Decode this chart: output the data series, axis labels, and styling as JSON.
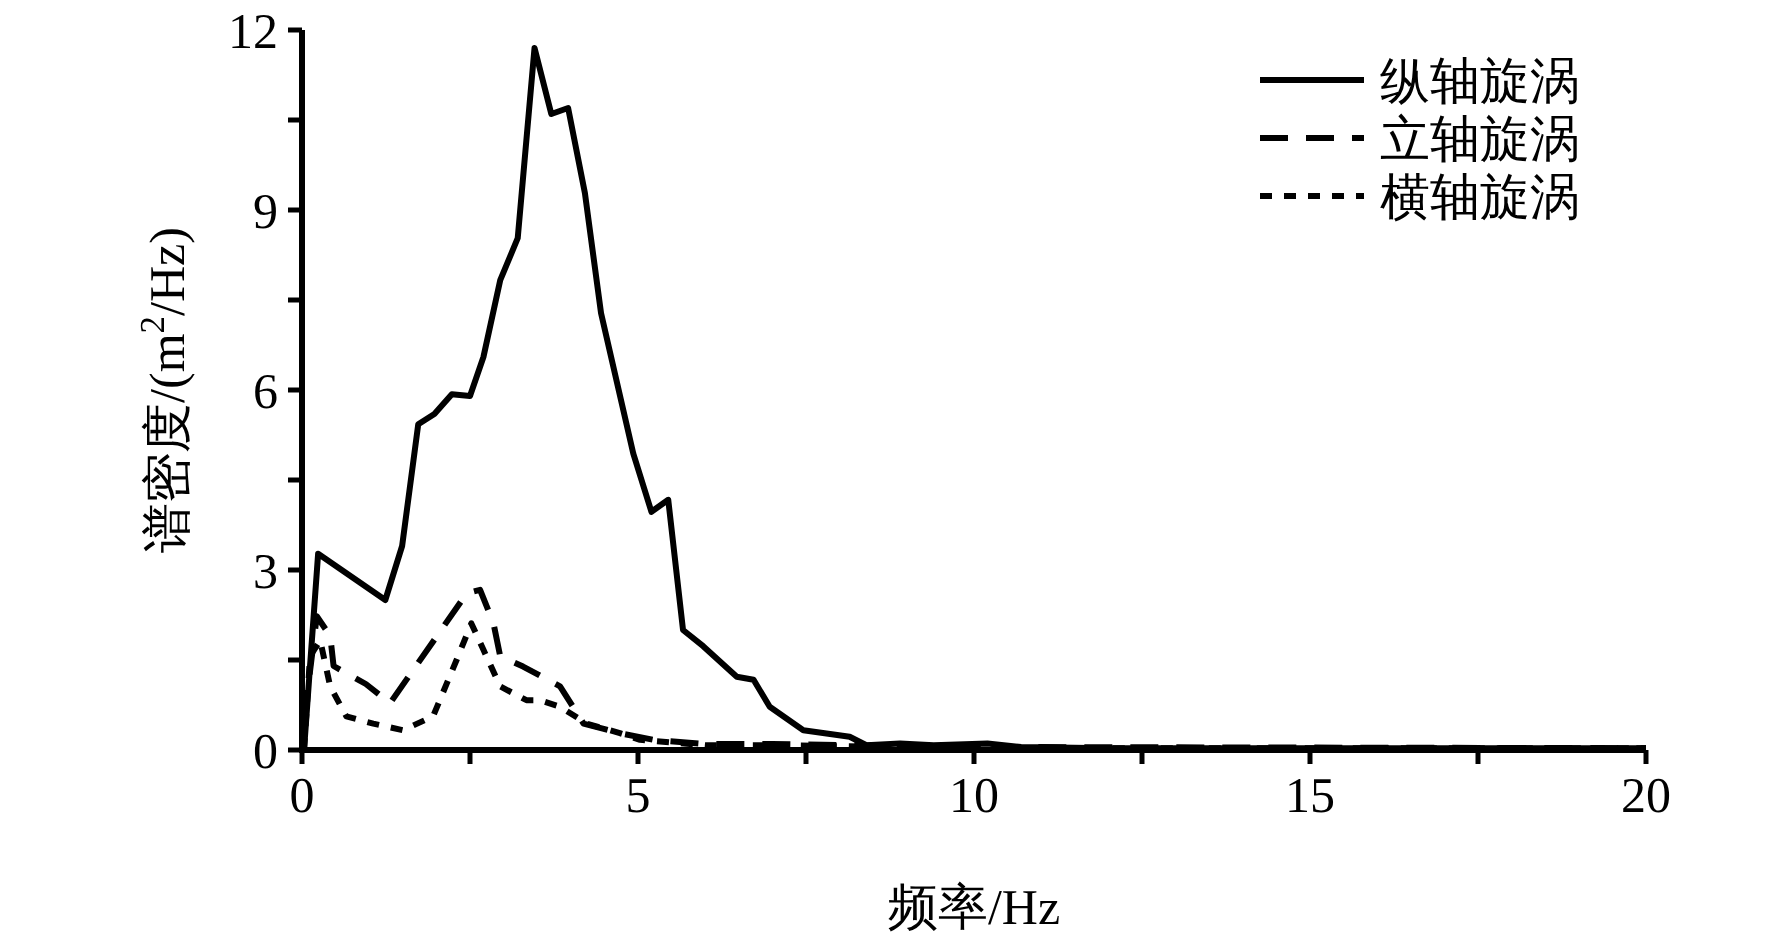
{
  "chart_data": {
    "type": "line",
    "xlabel": "频率/Hz",
    "ylabel": "谱密度/(m$^{2}$/Hz)",
    "xlim": [
      0,
      20
    ],
    "ylim": [
      0,
      12
    ],
    "xticks": [
      0,
      {
        "value": 2.5,
        "label": null
      },
      5,
      {
        "value": 7.5,
        "label": null
      },
      10,
      {
        "value": 12.5,
        "label": null
      },
      15,
      {
        "value": 17.5,
        "label": null
      },
      20
    ],
    "yticks": [
      0,
      {
        "value": 1.5,
        "label": null
      },
      3,
      {
        "value": 4.5,
        "label": null
      },
      6,
      {
        "value": 7.5,
        "label": null
      },
      9,
      {
        "value": 10.5,
        "label": null
      },
      12
    ],
    "grid": false,
    "legend": "top right",
    "series": [
      {
        "name": "纵轴旋涡",
        "color": "#000000",
        "line_style": "solid",
        "x": [
          0.03,
          0.24,
          1.24,
          1.49,
          1.73,
          1.97,
          2.23,
          2.5,
          2.7,
          2.95,
          3.21,
          3.46,
          3.71,
          3.96,
          4.21,
          4.45,
          4.93,
          5.2,
          5.45,
          5.67,
          5.97,
          6.47,
          6.72,
          6.96,
          7.46,
          8.15,
          8.4,
          8.9,
          9.4,
          10.2,
          10.7,
          12,
          15,
          20
        ],
        "values": [
          0,
          3.27,
          2.5,
          3.4,
          5.43,
          5.6,
          5.93,
          5.9,
          6.55,
          7.83,
          8.53,
          11.7,
          10.6,
          10.7,
          9.28,
          7.28,
          4.94,
          3.97,
          4.17,
          2.0,
          1.73,
          1.22,
          1.17,
          0.72,
          0.33,
          0.22,
          0.08,
          0.11,
          0.08,
          0.11,
          0.05,
          0.03,
          0.03,
          0.03
        ]
      },
      {
        "name": "立轴旋涡",
        "color": "#000000",
        "line_style": "dashed",
        "x": [
          0.03,
          0.22,
          0.42,
          0.47,
          0.95,
          1.31,
          2.45,
          2.65,
          2.85,
          2.95,
          3.29,
          3.84,
          4.19,
          4.73,
          5.23,
          6,
          7,
          10,
          20
        ],
        "values": [
          0.5,
          2.23,
          1.9,
          1.4,
          1.1,
          0.78,
          2.61,
          2.67,
          2.11,
          1.56,
          1.39,
          1.06,
          0.44,
          0.28,
          0.17,
          0.1,
          0.1,
          0.05,
          0.03
        ]
      },
      {
        "name": "横轴旋涡",
        "color": "#000000",
        "line_style": "dotted",
        "x": [
          0.03,
          0.12,
          0.27,
          0.42,
          0.66,
          1.06,
          1.5,
          1.95,
          2.3,
          2.52,
          2.7,
          2.95,
          3.34,
          3.54,
          3.84,
          4.24,
          4.73,
          5.03,
          6,
          7,
          10,
          20
        ],
        "values": [
          0,
          1.56,
          1.83,
          1.06,
          0.56,
          0.44,
          0.33,
          0.56,
          1.5,
          2.11,
          1.67,
          1.06,
          0.83,
          0.83,
          0.72,
          0.44,
          0.28,
          0.17,
          0.08,
          0.08,
          0.03,
          0.03
        ]
      }
    ]
  }
}
